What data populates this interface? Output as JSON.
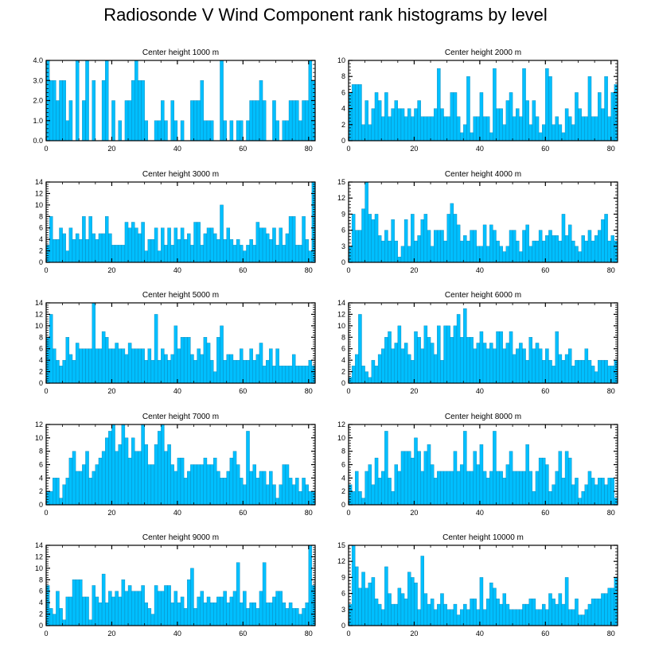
{
  "title": "Radiosonde V Wind Component rank histograms by level",
  "style": {
    "bar_fill": "#00bfff",
    "bar_edge": "#0a7aa8",
    "axis_color": "#000000"
  },
  "chart_data": [
    {
      "type": "bar",
      "title": "Center height 1000 m",
      "ylim": [
        0,
        4
      ],
      "yticks": [
        0,
        1,
        2,
        3,
        4
      ],
      "ytick_labels": [
        "0.0",
        "1.0",
        "2.0",
        "3.0",
        "4.0"
      ],
      "xlim": [
        0,
        82
      ],
      "xticks": [
        0,
        20,
        40,
        60,
        80
      ],
      "values": [
        4,
        3,
        3,
        2,
        3,
        3,
        1,
        2,
        0,
        4,
        0,
        2,
        4,
        0,
        3,
        0,
        0,
        3,
        4,
        0,
        2,
        0,
        1,
        0,
        2,
        2,
        3,
        4,
        3,
        3,
        1,
        0,
        0,
        1,
        1,
        2,
        1,
        0,
        2,
        1,
        0,
        1,
        0,
        0,
        2,
        2,
        2,
        3,
        1,
        1,
        1,
        0,
        0,
        4,
        1,
        0,
        1,
        0,
        1,
        1,
        0,
        1,
        2,
        2,
        2,
        3,
        2,
        0,
        0,
        2,
        1,
        0,
        1,
        1,
        2,
        2,
        2,
        1,
        2,
        2,
        4,
        3
      ]
    },
    {
      "type": "bar",
      "title": "Center height 2000 m",
      "ylim": [
        0,
        10
      ],
      "yticks": [
        0,
        2,
        4,
        6,
        8,
        10
      ],
      "ytick_labels": [
        "0",
        "2",
        "4",
        "6",
        "8",
        "10"
      ],
      "xlim": [
        0,
        82
      ],
      "xticks": [
        0,
        20,
        40,
        60,
        80
      ],
      "values": [
        6,
        7,
        7,
        7,
        2,
        5,
        2,
        4,
        6,
        5,
        3,
        6,
        3,
        4,
        5,
        4,
        4,
        3,
        4,
        3,
        4,
        5,
        3,
        3,
        3,
        3,
        4,
        9,
        4,
        3,
        3,
        6,
        6,
        3,
        1,
        2,
        8,
        1,
        3,
        3,
        6,
        3,
        3,
        1,
        9,
        4,
        4,
        2,
        5,
        6,
        3,
        4,
        3,
        9,
        5,
        2,
        5,
        3,
        1,
        2,
        9,
        8,
        2,
        3,
        2,
        1,
        4,
        3,
        2,
        6,
        4,
        3,
        3,
        8,
        3,
        3,
        6,
        4,
        8,
        3,
        6,
        7
      ]
    },
    {
      "type": "bar",
      "title": "Center height 3000 m",
      "ylim": [
        0,
        14
      ],
      "yticks": [
        0,
        2,
        4,
        6,
        8,
        10,
        12,
        14
      ],
      "ytick_labels": [
        "0",
        "2",
        "4",
        "6",
        "8",
        "10",
        "12",
        "14"
      ],
      "xlim": [
        0,
        82
      ],
      "xticks": [
        0,
        20,
        40,
        60,
        80
      ],
      "values": [
        3,
        8,
        4,
        4,
        6,
        5,
        2,
        6,
        4,
        5,
        4,
        8,
        4,
        8,
        5,
        4,
        5,
        5,
        8,
        5,
        3,
        3,
        3,
        3,
        7,
        6,
        7,
        6,
        5,
        7,
        2,
        4,
        4,
        6,
        2,
        6,
        3,
        6,
        3,
        6,
        4,
        6,
        4,
        5,
        3,
        7,
        7,
        3,
        5,
        6,
        6,
        5,
        4,
        10,
        4,
        6,
        4,
        3,
        4,
        3,
        2,
        3,
        4,
        3,
        7,
        6,
        6,
        5,
        4,
        6,
        3,
        6,
        3,
        5,
        8,
        8,
        3,
        3,
        8,
        4,
        2,
        14
      ]
    },
    {
      "type": "bar",
      "title": "Center height 4000 m",
      "ylim": [
        0,
        15
      ],
      "yticks": [
        0,
        3,
        6,
        9,
        12,
        15
      ],
      "ytick_labels": [
        "0",
        "3",
        "6",
        "9",
        "12",
        "15"
      ],
      "xlim": [
        0,
        82
      ],
      "xticks": [
        0,
        20,
        40,
        60,
        80
      ],
      "values": [
        3,
        9,
        6,
        6,
        10,
        15,
        9,
        8,
        9,
        5,
        4,
        6,
        4,
        8,
        4,
        1,
        3,
        8,
        3,
        9,
        4,
        5,
        8,
        9,
        6,
        3,
        6,
        6,
        6,
        4,
        9,
        11,
        9,
        7,
        4,
        5,
        4,
        6,
        6,
        3,
        3,
        7,
        3,
        7,
        6,
        4,
        3,
        2,
        3,
        6,
        6,
        4,
        2,
        6,
        7,
        3,
        4,
        4,
        6,
        4,
        5,
        6,
        5,
        5,
        4,
        9,
        5,
        7,
        4,
        3,
        2,
        5,
        4,
        6,
        4,
        5,
        6,
        8,
        9,
        4,
        5,
        4
      ]
    },
    {
      "type": "bar",
      "title": "Center height 5000 m",
      "ylim": [
        0,
        14
      ],
      "yticks": [
        0,
        2,
        4,
        6,
        8,
        10,
        12,
        14
      ],
      "ytick_labels": [
        "0",
        "2",
        "4",
        "6",
        "8",
        "10",
        "12",
        "14"
      ],
      "xlim": [
        0,
        82
      ],
      "xticks": [
        0,
        20,
        40,
        60,
        80
      ],
      "values": [
        8,
        12,
        6,
        4,
        3,
        4,
        8,
        5,
        4,
        7,
        6,
        6,
        6,
        6,
        14,
        6,
        6,
        9,
        8,
        6,
        6,
        7,
        6,
        6,
        5,
        7,
        6,
        6,
        6,
        6,
        4,
        6,
        4,
        12,
        4,
        6,
        5,
        4,
        5,
        10,
        6,
        8,
        8,
        8,
        5,
        4,
        6,
        5,
        8,
        7,
        4,
        2,
        8,
        10,
        4,
        5,
        5,
        4,
        4,
        6,
        4,
        4,
        6,
        4,
        5,
        7,
        3,
        4,
        6,
        3,
        6,
        3,
        3,
        3,
        3,
        5,
        3,
        3,
        3,
        3,
        4,
        3
      ]
    },
    {
      "type": "bar",
      "title": "Center height 6000 m",
      "ylim": [
        0,
        14
      ],
      "yticks": [
        0,
        2,
        4,
        6,
        8,
        10,
        12,
        14
      ],
      "ytick_labels": [
        "0",
        "2",
        "4",
        "6",
        "8",
        "10",
        "12",
        "14"
      ],
      "xlim": [
        0,
        82
      ],
      "xticks": [
        0,
        20,
        40,
        60,
        80
      ],
      "values": [
        1,
        3,
        5,
        12,
        3,
        2,
        1,
        4,
        3,
        5,
        6,
        8,
        9,
        6,
        7,
        10,
        6,
        7,
        5,
        4,
        9,
        8,
        6,
        10,
        8,
        7,
        5,
        10,
        4,
        10,
        10,
        8,
        10,
        12,
        8,
        13,
        8,
        8,
        6,
        7,
        9,
        7,
        6,
        7,
        6,
        9,
        9,
        6,
        7,
        9,
        5,
        6,
        7,
        6,
        4,
        8,
        6,
        7,
        6,
        4,
        6,
        4,
        3,
        9,
        5,
        4,
        5,
        6,
        3,
        4,
        4,
        4,
        6,
        4,
        3,
        2,
        4,
        4,
        4,
        3,
        3,
        4
      ]
    },
    {
      "type": "bar",
      "title": "Center height 7000 m",
      "ylim": [
        0,
        12
      ],
      "yticks": [
        0,
        2,
        4,
        6,
        8,
        10,
        12
      ],
      "ytick_labels": [
        "0",
        "2",
        "4",
        "6",
        "8",
        "10",
        "12"
      ],
      "xlim": [
        0,
        82
      ],
      "xticks": [
        0,
        20,
        40,
        60,
        80
      ],
      "values": [
        2,
        2,
        4,
        4,
        1,
        3,
        4,
        7,
        8,
        5,
        5,
        6,
        8,
        4,
        5,
        6,
        7,
        8,
        10,
        11,
        12,
        8,
        9,
        12,
        10,
        7,
        10,
        8,
        8,
        12,
        9,
        6,
        6,
        9,
        11,
        12,
        8,
        9,
        6,
        5,
        7,
        7,
        4,
        5,
        6,
        6,
        6,
        6,
        7,
        6,
        6,
        7,
        5,
        4,
        4,
        5,
        7,
        8,
        6,
        4,
        3,
        11,
        5,
        6,
        4,
        5,
        5,
        3,
        5,
        3,
        1,
        3,
        6,
        6,
        4,
        3,
        4,
        2,
        4,
        3,
        2,
        2
      ]
    },
    {
      "type": "bar",
      "title": "Center height 8000 m",
      "ylim": [
        0,
        12
      ],
      "yticks": [
        0,
        2,
        4,
        6,
        8,
        10,
        12
      ],
      "ytick_labels": [
        "0",
        "2",
        "4",
        "6",
        "8",
        "10",
        "12"
      ],
      "xlim": [
        0,
        82
      ],
      "xticks": [
        0,
        20,
        40,
        60,
        80
      ],
      "values": [
        3,
        2,
        5,
        2,
        1,
        5,
        6,
        3,
        7,
        4,
        5,
        11,
        4,
        2,
        6,
        5,
        8,
        8,
        8,
        7,
        10,
        8,
        5,
        8,
        9,
        6,
        4,
        5,
        5,
        5,
        5,
        5,
        8,
        5,
        6,
        11,
        5,
        5,
        8,
        6,
        9,
        5,
        4,
        5,
        11,
        5,
        5,
        4,
        6,
        8,
        5,
        5,
        5,
        5,
        9,
        5,
        2,
        5,
        7,
        7,
        6,
        2,
        3,
        5,
        8,
        4,
        8,
        7,
        3,
        4,
        1,
        2,
        3,
        5,
        4,
        3,
        4,
        4,
        3,
        4,
        4,
        1
      ]
    },
    {
      "type": "bar",
      "title": "Center height 9000 m",
      "ylim": [
        0,
        14
      ],
      "yticks": [
        0,
        2,
        4,
        6,
        8,
        10,
        12,
        14
      ],
      "ytick_labels": [
        "0",
        "2",
        "4",
        "6",
        "8",
        "10",
        "12",
        "14"
      ],
      "xlim": [
        0,
        82
      ],
      "xticks": [
        0,
        20,
        40,
        60,
        80
      ],
      "values": [
        7,
        3,
        2,
        6,
        3,
        1,
        5,
        5,
        8,
        8,
        8,
        5,
        5,
        1,
        7,
        5,
        4,
        9,
        4,
        6,
        5,
        6,
        5,
        8,
        6,
        7,
        6,
        6,
        6,
        7,
        4,
        3,
        2,
        7,
        6,
        6,
        7,
        7,
        4,
        6,
        4,
        5,
        3,
        8,
        10,
        3,
        5,
        6,
        4,
        5,
        4,
        4,
        5,
        5,
        6,
        4,
        5,
        6,
        11,
        4,
        6,
        3,
        4,
        4,
        3,
        6,
        11,
        4,
        4,
        5,
        6,
        6,
        4,
        3,
        4,
        3,
        3,
        2,
        3,
        4,
        14,
        7
      ]
    },
    {
      "type": "bar",
      "title": "Center height 10000 m",
      "ylim": [
        0,
        15
      ],
      "yticks": [
        0,
        3,
        6,
        9,
        12,
        15
      ],
      "ytick_labels": [
        "0",
        "3",
        "6",
        "9",
        "12",
        "15"
      ],
      "xlim": [
        0,
        82
      ],
      "xticks": [
        0,
        20,
        40,
        60,
        80
      ],
      "values": [
        4,
        15,
        11,
        7,
        10,
        7,
        8,
        9,
        5,
        4,
        3,
        11,
        6,
        4,
        4,
        7,
        6,
        5,
        10,
        9,
        8,
        3,
        13,
        6,
        4,
        5,
        3,
        4,
        6,
        4,
        3,
        3,
        4,
        2,
        3,
        4,
        3,
        5,
        5,
        3,
        9,
        3,
        5,
        8,
        7,
        5,
        4,
        6,
        4,
        3,
        3,
        3,
        3,
        4,
        4,
        5,
        5,
        3,
        3,
        4,
        3,
        6,
        5,
        4,
        6,
        4,
        9,
        3,
        3,
        5,
        2,
        2,
        3,
        4,
        5,
        5,
        5,
        6,
        6,
        7,
        7,
        9
      ]
    }
  ]
}
